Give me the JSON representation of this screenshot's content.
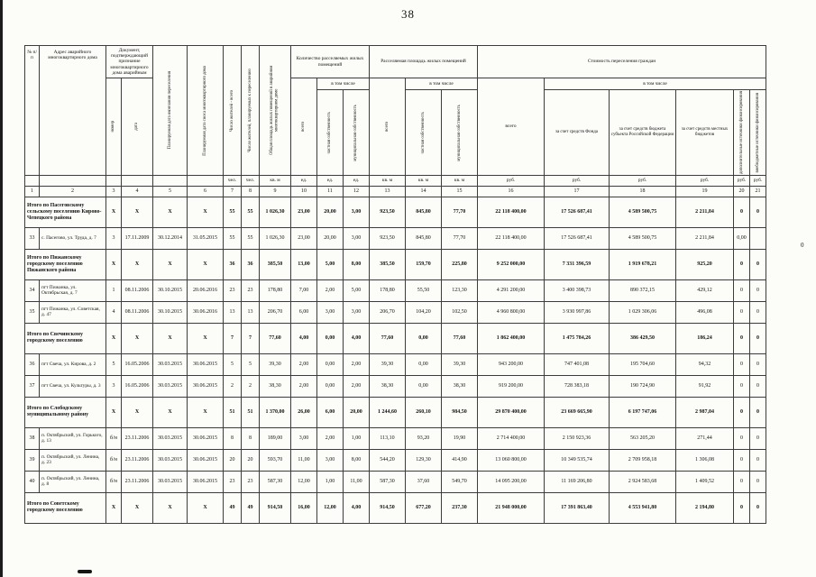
{
  "page": {
    "number": "38"
  },
  "artifacts": {
    "stray_zero": "0"
  },
  "table": {
    "headers": {
      "col1": "№ п/п",
      "col2": "Адрес аварийного многоквартирного дома",
      "doc_group": "Документ, подтверждающий признание многоквартирного дома аварийным",
      "doc_num": "номер",
      "doc_date": "дата",
      "col5": "Планируемая дата окончания переселения",
      "col6": "Планируемая дата сноса многоквартирного дома",
      "col7": "Число жителей - всего",
      "col8": "Число жителей, планируемых к переселению",
      "col9": "Общая площадь жилых помещений в аварийном многоквартирном доме",
      "count_group": "Количество расселяемых жилых помещений",
      "area_group": "Расселяемая площадь жилых помещений",
      "cost_group": "Стоимость переселения граждан",
      "vsego": "всего",
      "vtch": "в том числе",
      "chastnaya": "частная собственность",
      "municipalnaya": "муниципальная собственность",
      "fond": "за счет средств Фонда",
      "subjekt": "за счет средств бюджета субъекта Российской Федерации",
      "mestn": "за счет средств местных бюджетов",
      "dop": "дополнительные источники финансирования",
      "vneb": "внебюджетные источники финансирования"
    },
    "units": [
      "чел.",
      "чел.",
      "кв. м",
      "ед.",
      "ед.",
      "ед.",
      "кв. м",
      "кв. м",
      "кв. м",
      "руб.",
      "руб.",
      "руб.",
      "руб.",
      "руб.",
      "руб."
    ],
    "col_numbers": [
      "1",
      "2",
      "3",
      "4",
      "5",
      "6",
      "7",
      "8",
      "9",
      "10",
      "11",
      "12",
      "13",
      "14",
      "15",
      "16",
      "17",
      "18",
      "19",
      "20",
      "21"
    ],
    "rows": [
      {
        "type": "summary",
        "label": "Итого по Пасеговскому сельскому поселению Кирово-Чепецкого района",
        "cells": [
          "Х",
          "Х",
          "Х",
          "Х",
          "55",
          "55",
          "1 026,30",
          "23,00",
          "20,00",
          "3,00",
          "923,50",
          "845,80",
          "77,70",
          "22 118 400,00",
          "17 526 687,41",
          "4 589 500,75",
          "2 211,84",
          "0",
          "0"
        ]
      },
      {
        "type": "detail",
        "num": "33",
        "address": "с. Пасегово, ул. Труда, д. 7",
        "cells": [
          "3",
          "17.11.2009",
          "30.12.2014",
          "31.05.2015",
          "55",
          "55",
          "1 026,30",
          "23,00",
          "20,00",
          "3,00",
          "923,50",
          "845,80",
          "77,70",
          "22 118 400,00",
          "17 526 687,41",
          "4 589 500,75",
          "2 211,84",
          "0,00",
          ""
        ]
      },
      {
        "type": "summary",
        "label": "Итого по Пижанскому городскому поселению Пижанского района",
        "cells": [
          "Х",
          "Х",
          "Х",
          "Х",
          "36",
          "36",
          "385,50",
          "13,00",
          "5,00",
          "8,00",
          "385,50",
          "159,70",
          "225,80",
          "9 252 000,00",
          "7 331 396,59",
          "1 919 678,21",
          "925,20",
          "0",
          "0"
        ]
      },
      {
        "type": "detail",
        "num": "34",
        "address": "пгт Пижанка, ул. Октябрьская, д. 7",
        "cells": [
          "1",
          "08.11.2006",
          "30.10.2015",
          "20.06.2016",
          "23",
          "23",
          "178,80",
          "7,00",
          "2,00",
          "5,00",
          "178,80",
          "55,50",
          "123,30",
          "4 291 200,00",
          "3 400 398,73",
          "890 372,15",
          "429,12",
          "0",
          "0"
        ]
      },
      {
        "type": "detail",
        "num": "35",
        "address": "пгт Пижанка, ул. Советская, д. 47",
        "cells": [
          "4",
          "08.11.2006",
          "30.10.2015",
          "30.06.2016",
          "13",
          "13",
          "206,70",
          "6,00",
          "3,00",
          "3,00",
          "206,70",
          "104,20",
          "102,50",
          "4 960 800,00",
          "3 930 997,86",
          "1 029 306,06",
          "496,08",
          "0",
          "0"
        ]
      },
      {
        "type": "summary",
        "label": "Итого по Свечинскому городскому поселению",
        "cells": [
          "Х",
          "Х",
          "Х",
          "Х",
          "7",
          "7",
          "77,60",
          "4,00",
          "0,00",
          "4,00",
          "77,60",
          "0,00",
          "77,60",
          "1 862 400,00",
          "1 475 784,26",
          "386 429,50",
          "186,24",
          "0",
          "0"
        ]
      },
      {
        "type": "detail",
        "num": "36",
        "address": "пгт Свеча, ул. Кирова, д. 2",
        "cells": [
          "5",
          "16.05.2006",
          "30.03.2015",
          "30.06.2015",
          "5",
          "5",
          "39,30",
          "2,00",
          "0,00",
          "2,00",
          "39,30",
          "0,00",
          "39,30",
          "943 200,00",
          "747 401,08",
          "195 704,60",
          "94,32",
          "0",
          "0"
        ]
      },
      {
        "type": "detail",
        "num": "37",
        "address": "пгт Свеча, ул. Культуры, д. 3",
        "cells": [
          "3",
          "16.05.2006",
          "30.03.2015",
          "30.06.2015",
          "2",
          "2",
          "38,30",
          "2,00",
          "0,00",
          "2,00",
          "38,30",
          "0,00",
          "38,30",
          "919 200,00",
          "728 383,18",
          "190 724,90",
          "91,92",
          "0",
          "0"
        ]
      },
      {
        "type": "summary",
        "label": "Итого по Слободскому муниципальному району",
        "cells": [
          "Х",
          "Х",
          "Х",
          "Х",
          "51",
          "51",
          "1 370,00",
          "26,00",
          "6,00",
          "20,00",
          "1 244,60",
          "260,10",
          "984,50",
          "29 870 400,00",
          "23 669 665,90",
          "6 197 747,06",
          "2 987,04",
          "0",
          "0"
        ]
      },
      {
        "type": "detail",
        "num": "38",
        "address": "п. Октябрьский, ул. Горького, д. 13",
        "cells": [
          "б/н",
          "23.11.2006",
          "30.03.2015",
          "30.06.2015",
          "8",
          "8",
          "189,00",
          "3,00",
          "2,00",
          "1,00",
          "113,10",
          "93,20",
          "19,90",
          "2 714 400,00",
          "2 150 923,36",
          "563 205,20",
          "271,44",
          "0",
          "0"
        ]
      },
      {
        "type": "detail",
        "num": "39",
        "address": "п. Октябрьский, ул. Ленина, д. 23",
        "cells": [
          "б/н",
          "23.11.2006",
          "30.03.2015",
          "30.06.2015",
          "20",
          "20",
          "593,70",
          "11,00",
          "3,00",
          "8,00",
          "544,20",
          "129,30",
          "414,90",
          "13 060 800,00",
          "10 349 535,74",
          "2 709 958,18",
          "1 306,08",
          "0",
          "0"
        ]
      },
      {
        "type": "detail",
        "num": "40",
        "address": "п. Октябрьский, ул. Ленина, д. 8",
        "cells": [
          "б/н",
          "23.11.2006",
          "30.03.2015",
          "30.06.2015",
          "23",
          "23",
          "587,30",
          "12,00",
          "1,00",
          "11,00",
          "587,30",
          "37,60",
          "549,70",
          "14 095 200,00",
          "11 169 206,80",
          "2 924 583,68",
          "1 409,52",
          "0",
          "0"
        ]
      },
      {
        "type": "summary",
        "label": "Итого по Советскому городскому поселению",
        "cells": [
          "Х",
          "Х",
          "Х",
          "Х",
          "49",
          "49",
          "914,50",
          "16,00",
          "12,00",
          "4,00",
          "914,50",
          "677,20",
          "237,30",
          "21 948 000,00",
          "17 391 863,40",
          "4 553 941,80",
          "2 194,80",
          "0",
          "0"
        ]
      }
    ]
  }
}
